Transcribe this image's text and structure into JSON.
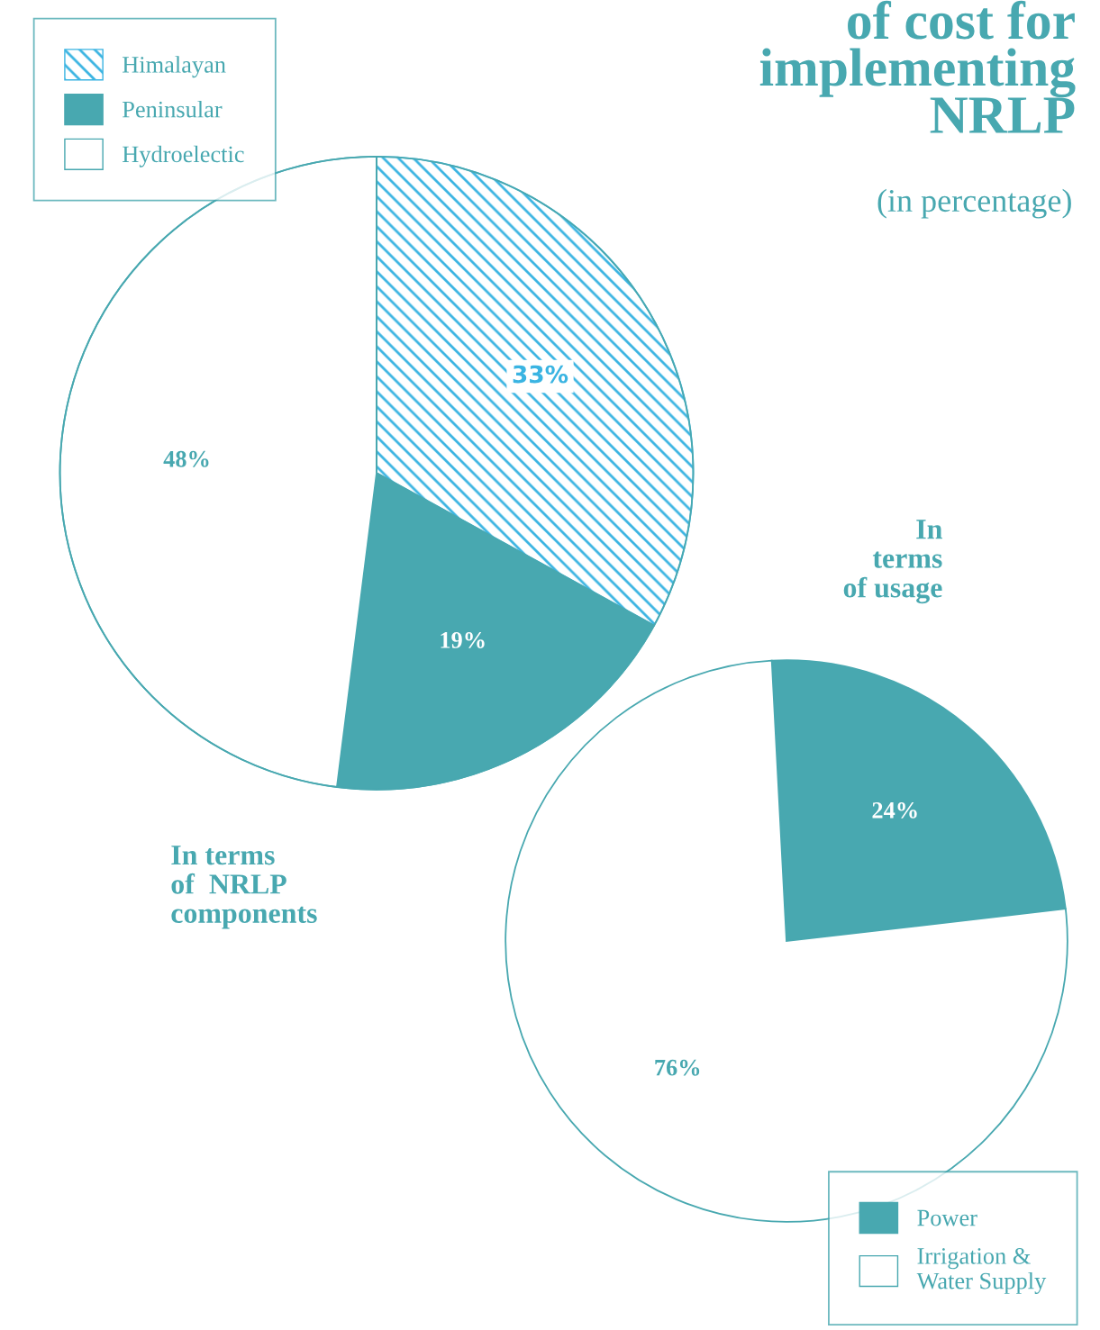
{
  "chart_data": [
    {
      "type": "pie",
      "title": "of cost for\nimplementing\nNRLP",
      "subtitle": "(in percentage)",
      "categories": [
        "Himalayan",
        "Peninsular",
        "Hydroelectic"
      ],
      "values": [
        33,
        19,
        48
      ],
      "colors": [
        "#3ab4e2",
        "#48a8b0",
        "#ffffff"
      ],
      "value_labels": [
        "33%",
        "19%",
        "48%"
      ],
      "legend": "top left",
      "annotations": [
        "In terms\nof  NRLP\ncomponents"
      ]
    },
    {
      "type": "pie",
      "categories": [
        "Power",
        "Irrigation &\nWater Supply"
      ],
      "values": [
        24,
        76
      ],
      "colors": [
        "#48a8b0",
        "#ffffff"
      ],
      "value_labels": [
        "24%",
        "76%"
      ],
      "legend": "bottom right",
      "annotations": [
        "In\nterms\nof usage"
      ]
    }
  ]
}
